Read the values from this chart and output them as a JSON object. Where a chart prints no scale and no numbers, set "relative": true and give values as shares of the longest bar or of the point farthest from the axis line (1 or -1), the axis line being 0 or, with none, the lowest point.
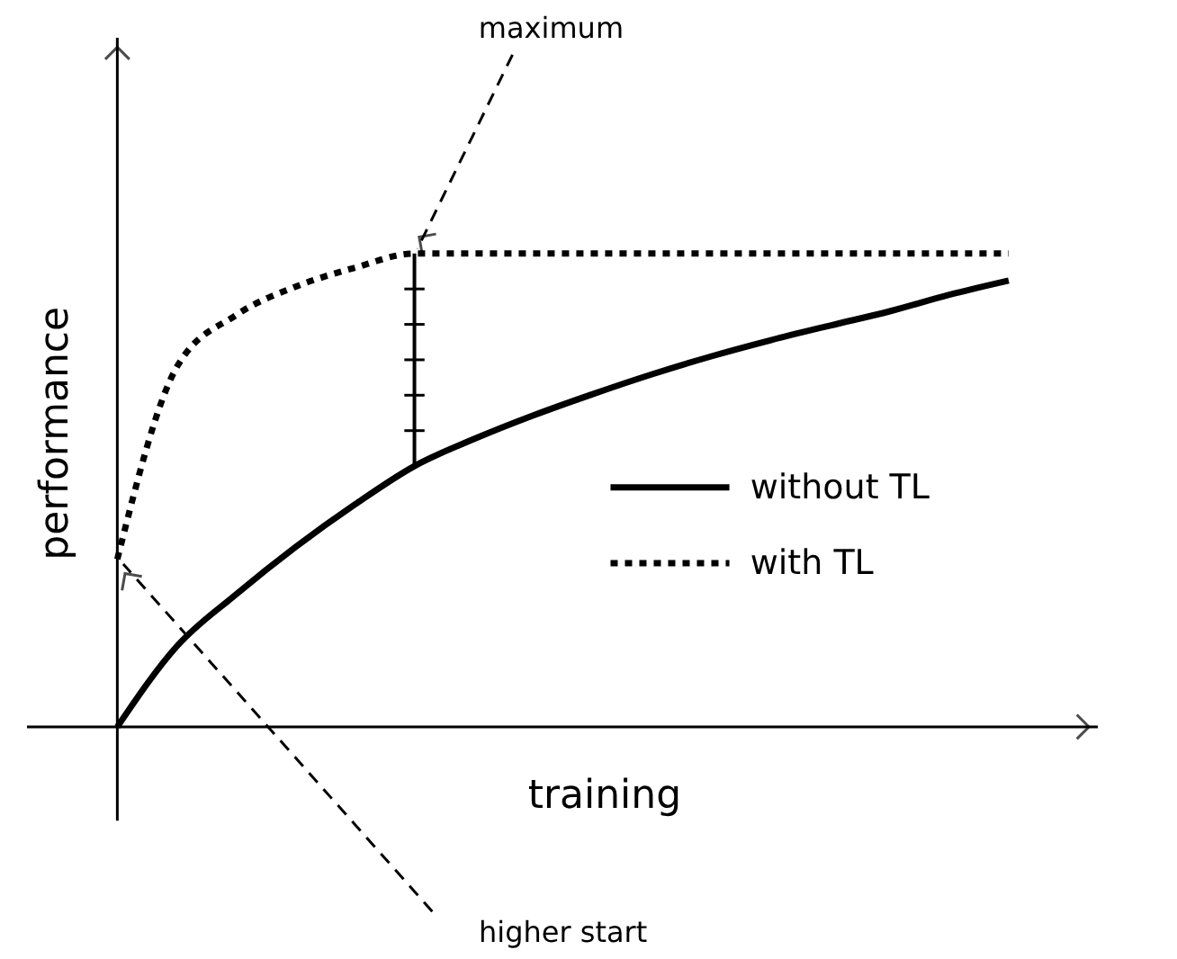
{
  "chart_data": {
    "type": "line",
    "relative": true,
    "xlabel": "training",
    "ylabel": "performance",
    "categories": [
      null,
      null,
      null,
      null,
      null,
      null,
      null,
      null,
      null,
      null,
      null,
      null,
      null,
      null,
      null,
      null
    ],
    "series": [
      {
        "name": "without TL",
        "color": "#000000",
        "line_style": "solid",
        "values": [
          0,
          0.17,
          0.28,
          0.38,
          0.47,
          0.551,
          0.608,
          0.658,
          0.703,
          0.745,
          0.783,
          0.817,
          0.848,
          0.878,
          0.913,
          0.943
        ]
      },
      {
        "name": "with TL",
        "color": "#000000",
        "line_style": "dotted",
        "values": [
          0.354,
          0.76,
          0.87,
          0.93,
          0.97,
          1,
          1,
          1,
          1,
          1,
          1,
          1,
          1,
          1,
          1,
          1
        ]
      }
    ],
    "annotations": [
      "maximum",
      "higher start"
    ],
    "legend": "right"
  }
}
